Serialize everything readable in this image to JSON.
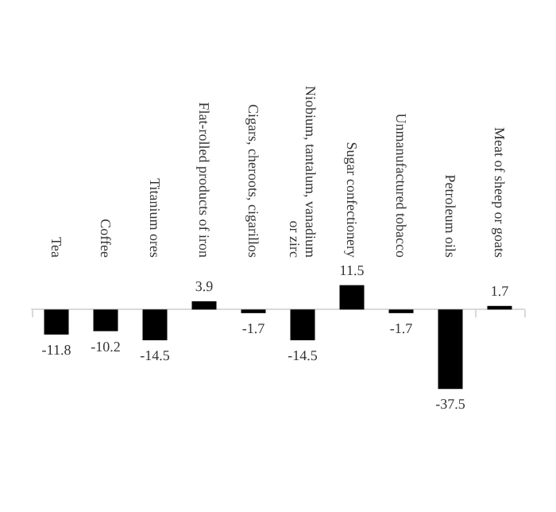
{
  "chart_data": {
    "type": "bar",
    "categories": [
      "Tea",
      "Coffee",
      "Titanium ores",
      "Flat-rolled products of iron",
      "Cigars, cheroots, cigarillos",
      "Niobium, tantalum, vanadium or zirc",
      "Sugar confectionery",
      "Unmanufactured tobacco",
      "Petroleum oils",
      "Meat of sheep or goats"
    ],
    "values": [
      -11.8,
      -10.2,
      -14.5,
      3.9,
      -1.7,
      -14.5,
      11.5,
      -1.7,
      -37.5,
      1.7
    ],
    "color": "#000000",
    "data_labels": true
  }
}
